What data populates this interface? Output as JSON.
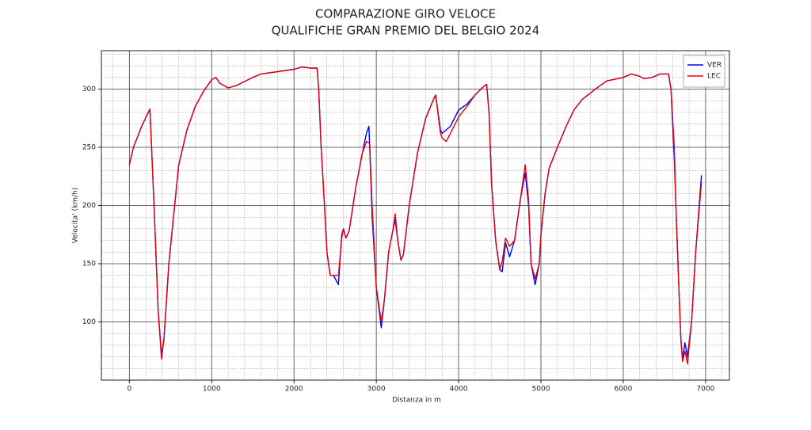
{
  "chart_data": {
    "type": "line",
    "title": "COMPARAZIONE GIRO VELOCE",
    "subtitle": "QUALIFICHE GRAN PREMIO DEL BELGIO 2024",
    "x_label": "Distanza in m",
    "y_label": "Velocita' (km/h)",
    "x": [
      0,
      50,
      150,
      230,
      250,
      300,
      350,
      390,
      420,
      480,
      550,
      600,
      700,
      800,
      900,
      1000,
      1050,
      1100,
      1200,
      1300,
      1500,
      1600,
      1800,
      2000,
      2100,
      2200,
      2280,
      2300,
      2330,
      2370,
      2400,
      2440,
      2480,
      2540,
      2580,
      2600,
      2630,
      2670,
      2750,
      2830,
      2880,
      2910,
      2920,
      2950,
      3000,
      3060,
      3100,
      3150,
      3200,
      3230,
      3260,
      3300,
      3330,
      3400,
      3500,
      3600,
      3700,
      3720,
      3780,
      3800,
      3850,
      3900,
      4000,
      4100,
      4200,
      4300,
      4340,
      4370,
      4400,
      4450,
      4500,
      4530,
      4570,
      4620,
      4680,
      4750,
      4810,
      4850,
      4880,
      4930,
      4980,
      5000,
      5050,
      5100,
      5200,
      5300,
      5400,
      5500,
      5700,
      5800,
      6000,
      6100,
      6200,
      6250,
      6350,
      6450,
      6550,
      6580,
      6620,
      6640,
      6670,
      6700,
      6720,
      6750,
      6780,
      6830,
      6880,
      6950
    ],
    "series": [
      {
        "name": "VER",
        "color": "#0000ff",
        "values": [
          235,
          250,
          268,
          280,
          283,
          200,
          110,
          72,
          85,
          150,
          200,
          235,
          265,
          285,
          298,
          308,
          310,
          305,
          301,
          303,
          310,
          313,
          315,
          317,
          319,
          318,
          318,
          300,
          250,
          200,
          160,
          140,
          140,
          132,
          175,
          180,
          172,
          178,
          215,
          245,
          262,
          268,
          250,
          190,
          130,
          95,
          120,
          160,
          178,
          188,
          170,
          153,
          158,
          200,
          245,
          275,
          292,
          295,
          265,
          262,
          265,
          268,
          282,
          287,
          295,
          302,
          304,
          280,
          220,
          170,
          145,
          143,
          168,
          156,
          170,
          205,
          228,
          200,
          150,
          132,
          150,
          175,
          210,
          232,
          250,
          267,
          282,
          291,
          302,
          307,
          310,
          313,
          311,
          309,
          310,
          313,
          313,
          300,
          240,
          200,
          140,
          85,
          68,
          82,
          70,
          100,
          160,
          226
        ]
      },
      {
        "name": "LEC",
        "color": "#e8000b",
        "values": [
          235,
          250,
          268,
          280,
          283,
          200,
          110,
          68,
          85,
          150,
          200,
          235,
          265,
          285,
          298,
          308,
          310,
          305,
          301,
          303,
          310,
          313,
          315,
          317,
          319,
          318,
          318,
          300,
          250,
          200,
          160,
          140,
          140,
          140,
          172,
          180,
          172,
          178,
          215,
          245,
          255,
          254,
          253,
          200,
          130,
          100,
          120,
          160,
          178,
          193,
          170,
          153,
          158,
          200,
          245,
          275,
          292,
          295,
          262,
          258,
          255,
          262,
          276,
          285,
          295,
          302,
          304,
          280,
          220,
          170,
          145,
          152,
          172,
          165,
          170,
          205,
          235,
          205,
          150,
          137,
          150,
          175,
          210,
          232,
          250,
          267,
          282,
          291,
          302,
          307,
          310,
          313,
          311,
          309,
          310,
          313,
          313,
          300,
          250,
          200,
          140,
          85,
          66,
          75,
          64,
          100,
          160,
          220
        ]
      }
    ],
    "xlim": [
      -340,
      7290
    ],
    "ylim": [
      50,
      333
    ],
    "xticks": [
      0,
      1000,
      2000,
      3000,
      4000,
      5000,
      6000,
      7000
    ],
    "yticks": [
      100,
      150,
      200,
      250,
      300
    ],
    "grid": true,
    "minor_grid": true,
    "legend": "upper right"
  }
}
